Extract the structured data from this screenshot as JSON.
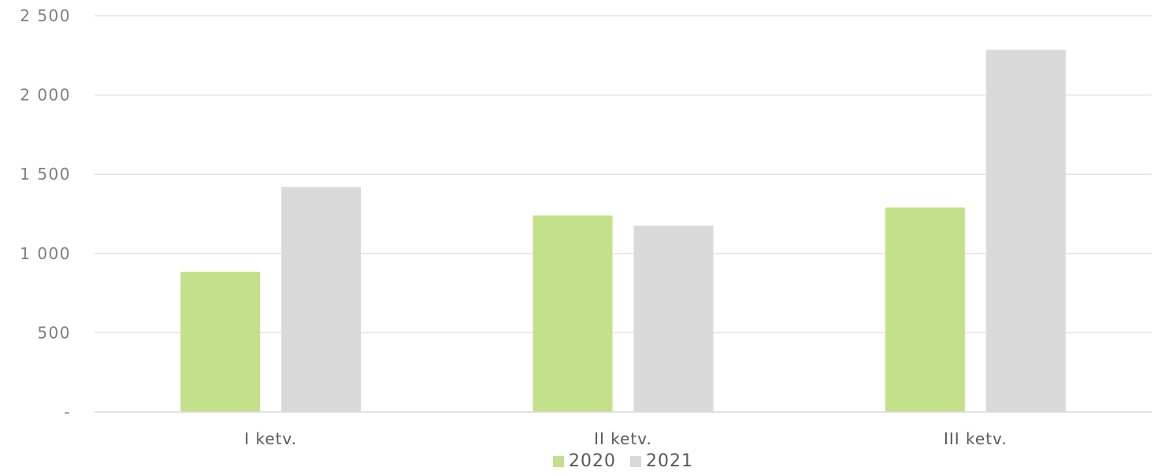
{
  "chart_data": {
    "type": "bar",
    "categories": [
      "I ketv.",
      "II ketv.",
      "III ketv."
    ],
    "series": [
      {
        "name": "2020",
        "values": [
          885,
          1240,
          1290
        ],
        "color": "#c3e08b"
      },
      {
        "name": "2021",
        "values": [
          1420,
          1175,
          2285
        ],
        "color": "#d9d9d9"
      }
    ],
    "ylim": [
      0,
      2500
    ],
    "y_ticks": [
      {
        "value": 0,
        "label": "-"
      },
      {
        "value": 500,
        "label": "500"
      },
      {
        "value": 1000,
        "label": "1 000"
      },
      {
        "value": 1500,
        "label": "1 500"
      },
      {
        "value": 2000,
        "label": "2 000"
      },
      {
        "value": 2500,
        "label": "2 500"
      }
    ],
    "grid": true,
    "legend_position": "bottom"
  }
}
